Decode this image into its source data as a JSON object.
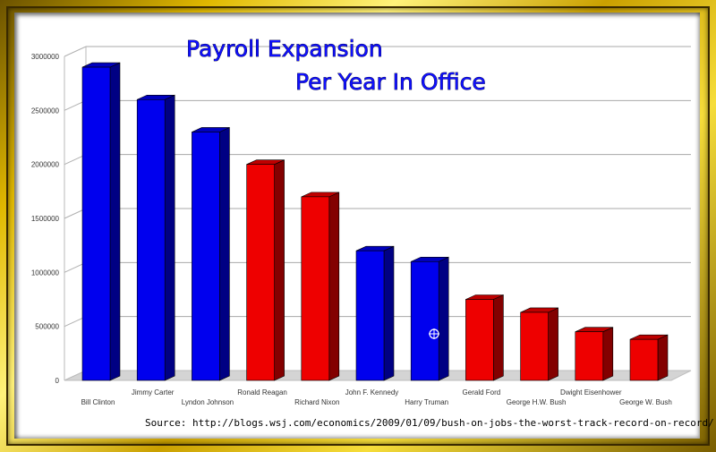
{
  "chart_data": {
    "type": "bar",
    "title_line1": "Payroll Expansion",
    "title_line2": "Per Year In Office",
    "source": "Source: http://blogs.wsj.com/economics/2009/01/09/bush-on-jobs-the-worst-track-record-on-record/",
    "categories": [
      "Bill Clinton",
      "Jimmy Carter",
      "Lyndon Johnson",
      "Ronald Reagan",
      "Richard Nixon",
      "John F. Kennedy",
      "Harry Truman",
      "Gerald Ford",
      "George H.W. Bush",
      "Dwight Eisenhower",
      "George W. Bush"
    ],
    "values": [
      2900000,
      2600000,
      2300000,
      2000000,
      1700000,
      1200000,
      1100000,
      750000,
      630000,
      450000,
      380000
    ],
    "bar_colors": [
      "#0000ee",
      "#0000ee",
      "#0000ee",
      "#ee0000",
      "#ee0000",
      "#0000ee",
      "#0000ee",
      "#ee0000",
      "#ee0000",
      "#ee0000",
      "#ee0000"
    ],
    "y_ticks": [
      "0",
      "500000",
      "1000000",
      "1500000",
      "2000000",
      "2500000",
      "3000000"
    ],
    "ylim": [
      0,
      3000000
    ],
    "grid": true,
    "legend": "none"
  }
}
